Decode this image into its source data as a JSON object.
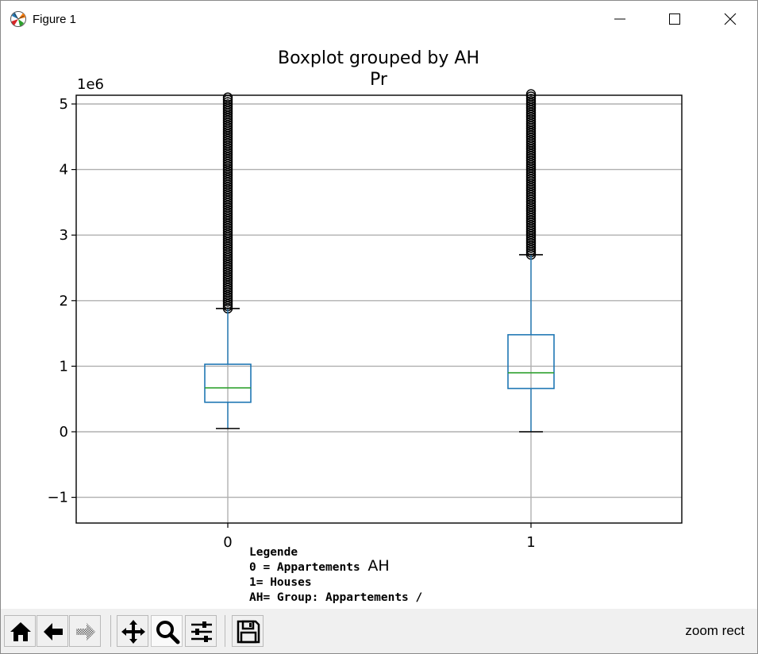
{
  "window": {
    "title": "Figure 1",
    "minimize_icon": "minimize-icon",
    "maximize_icon": "maximize-icon",
    "close_icon": "close-icon"
  },
  "legend_note": {
    "lines": [
      "Legende",
      "0 = Appartements",
      "1= Houses",
      "AH= Group: Appartements /"
    ]
  },
  "toolbar": {
    "buttons": [
      {
        "name": "home",
        "icon": "home-icon"
      },
      {
        "name": "back",
        "icon": "back-arrow-icon"
      },
      {
        "name": "forward",
        "icon": "forward-arrow-icon"
      },
      {
        "name": "pan",
        "icon": "pan-move-icon"
      },
      {
        "name": "zoom",
        "icon": "zoom-magnifier-icon",
        "active": true
      },
      {
        "name": "configure-subplots",
        "icon": "sliders-icon"
      },
      {
        "name": "save",
        "icon": "save-disk-icon"
      }
    ],
    "status": "zoom rect"
  },
  "chart_data": {
    "type": "boxplot",
    "title": "Boxplot grouped by AH",
    "subtitle": "Pr",
    "xlabel": "AH",
    "ylabel": "",
    "y_offset_label": "1e6",
    "categories": [
      "0",
      "1"
    ],
    "yticks": [
      -1,
      0,
      1,
      2,
      3,
      4,
      5
    ],
    "ytick_labels": [
      "−1",
      "0",
      "1",
      "2",
      "3",
      "4",
      "5"
    ],
    "ylim": [
      -1.4,
      5.15
    ],
    "grid": true,
    "scale": "x 1e6",
    "boxes": [
      {
        "category": "0",
        "whisker_low": 0.05,
        "q1": 0.45,
        "median": 0.67,
        "q3": 1.03,
        "whisker_high": 1.88,
        "outliers_from": 1.88,
        "outliers_to": 5.1
      },
      {
        "category": "1",
        "whisker_low": 0.0,
        "q1": 0.66,
        "median": 0.9,
        "q3": 1.48,
        "whisker_high": 2.7,
        "outliers_from": 2.7,
        "outliers_to": 5.15
      }
    ],
    "colors": {
      "box": "#1f77b4",
      "median": "#2ca02c",
      "outlier": "#000000",
      "grid": "#b0b0b0"
    }
  }
}
